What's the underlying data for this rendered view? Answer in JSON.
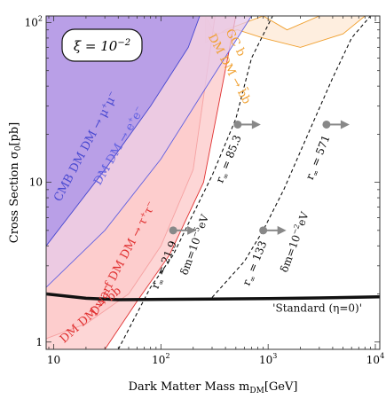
{
  "chart_data": {
    "type": "area",
    "xscale": "log",
    "yscale": "log",
    "xlim": [
      8.5,
      11000
    ],
    "ylim": [
      0.9,
      110
    ],
    "xlabel": "Dark Matter Mass  m",
    "xlabel_sub": "DM",
    "xlabel_unit": "[GeV]",
    "ylabel": "Cross Section  σ",
    "ylabel_sub": "0",
    "ylabel_unit": "[pb]",
    "xticks": [
      {
        "value": 10,
        "label": "10"
      },
      {
        "value": 100,
        "label": "10",
        "sup": "2"
      },
      {
        "value": 1000,
        "label": "10",
        "sup": "3"
      },
      {
        "value": 10000,
        "label": "10",
        "sup": "4"
      }
    ],
    "yticks": [
      {
        "value": 1,
        "label": "1"
      },
      {
        "value": 10,
        "label": "10"
      },
      {
        "value": 100,
        "label": "10",
        "sup": "2"
      }
    ],
    "inset_label": {
      "text": "ξ = 10",
      "sup": "−2"
    },
    "regions": [
      {
        "name": "GC b",
        "label": "GC b",
        "label2": "DM DM → b̄b",
        "color": "#f0a030",
        "fill": "#fde8d4",
        "polygon": [
          [
            260,
            110
          ],
          [
            320,
            85
          ],
          [
            520,
            90
          ],
          [
            900,
            80
          ],
          [
            2000,
            70
          ],
          [
            5000,
            85
          ],
          [
            8000,
            110
          ],
          [
            3000,
            110
          ],
          [
            1500,
            90
          ],
          [
            900,
            110
          ],
          [
            400,
            90
          ],
          [
            260,
            75
          ]
        ]
      },
      {
        "name": "DM DM → τ⁺τ⁻",
        "label": "Dwarf  DM DM → τ",
        "sup": "+",
        "sup2": "τ",
        "sup3": "−",
        "color": "#e03030",
        "fill": "#fdd0d0",
        "polygon": [
          [
            8.5,
            1.05
          ],
          [
            20,
            1.3
          ],
          [
            50,
            2
          ],
          [
            100,
            4
          ],
          [
            200,
            12
          ],
          [
            320,
            110
          ],
          [
            8.5,
            110
          ]
        ]
      },
      {
        "name": "DM DM → b̄b",
        "label": "DM DM → b̄b",
        "color": "#e03030",
        "fill": "#fcc8c8",
        "polygon": [
          [
            8.5,
            0.9
          ],
          [
            30,
            0.9
          ],
          [
            60,
            1.8
          ],
          [
            120,
            3.5
          ],
          [
            250,
            10
          ],
          [
            500,
            110
          ],
          [
            8.5,
            110
          ]
        ]
      },
      {
        "name": "DM DM → e⁺e⁻",
        "label": "DM DM → e",
        "sup": "+",
        "sup2": "e",
        "sup3": "−",
        "color": "#6060e0",
        "fill": "#e6c8e8",
        "polygon": [
          [
            8.5,
            2.2
          ],
          [
            30,
            5
          ],
          [
            100,
            14
          ],
          [
            300,
            45
          ],
          [
            700,
            110
          ],
          [
            8.5,
            110
          ]
        ]
      },
      {
        "name": "CMB DM DM → μ⁺μ⁻",
        "label": "CMB  DM DM → μ",
        "sup": "+",
        "sup2": "μ",
        "sup3": "−",
        "color": "#4848d0",
        "fill": "#a890e8",
        "polygon": [
          [
            8.5,
            4
          ],
          [
            30,
            12
          ],
          [
            80,
            30
          ],
          [
            180,
            70
          ],
          [
            230,
            110
          ],
          [
            8.5,
            110
          ]
        ]
      }
    ],
    "lines": [
      {
        "name": "Standard (η=0)",
        "label": "'Standard (η=0)'",
        "style": "solid",
        "width": 3.5,
        "color": "#111111",
        "x": [
          8.5,
          20,
          40,
          100,
          300,
          1000,
          3000,
          11000
        ],
        "y": [
          2.0,
          1.88,
          1.84,
          1.85,
          1.86,
          1.87,
          1.89,
          1.92
        ]
      },
      {
        "name": "δm=10⁻⁵eV",
        "label": "δm=10",
        "sup": "−5",
        "tail": "eV",
        "style": "dashed",
        "color": "#111111",
        "x": [
          40,
          80,
          130,
          180,
          300,
          500,
          700,
          1100
        ],
        "y": [
          0.9,
          2.2,
          3.5,
          5.5,
          11,
          25,
          60,
          110
        ]
      },
      {
        "name": "δm=10⁻²eV",
        "label": "δm=10",
        "sup": "−2",
        "tail": "eV",
        "style": "dashed",
        "color": "#111111",
        "x": [
          300,
          600,
          900,
          1400,
          2500,
          4000,
          6000,
          9000
        ],
        "y": [
          1.9,
          3.2,
          5.0,
          9,
          22,
          45,
          80,
          110
        ]
      }
    ],
    "markers": [
      {
        "name": "r∞=21.9",
        "x": 130,
        "y": 5.0,
        "label": "r",
        "sub": "∞",
        "tail": " = 21.9"
      },
      {
        "name": "r∞=85.3",
        "x": 520,
        "y": 23.0,
        "label": "r",
        "sub": "∞",
        "tail": " = 85.3"
      },
      {
        "name": "r∞=133",
        "x": 900,
        "y": 5.0,
        "label": "r",
        "sub": "∞",
        "tail": " = 133"
      },
      {
        "name": "r∞=571",
        "x": 3500,
        "y": 23.0,
        "label": "r",
        "sub": "∞",
        "tail": " = 571"
      }
    ]
  }
}
